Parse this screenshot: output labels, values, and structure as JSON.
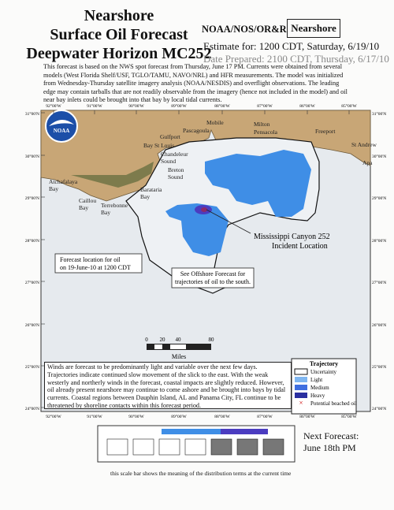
{
  "header": {
    "title_lines": [
      "Nearshore",
      "Surface Oil Forecast",
      "Deepwater Horizon MC252"
    ],
    "agency": "NOAA/NOS/OR&R",
    "badge": "Nearshore",
    "estimate": "Estimate for: 1200 CDT, Saturday, 6/19/10",
    "prepared": "Date Prepared: 2100 CDT, Thursday, 6/17/10"
  },
  "intro": "This forecast is based on the NWS spot forecast from Thursday, June 17 PM. Currents were obtained from several models (West Florida Shelf/USF, TGLO/TAMU, NAVO/NRL) and HFR measurements. The model was initialized from Wednesday-Thursday satellite imagery analysis (NOAA/NESDIS) and overflight observations. The leading edge may contain tarballs that are not readily observable from the imagery (hence not included in the model) and oil near bay inlets could be brought into that bay by local tidal currents.",
  "map": {
    "logo": "NOAA",
    "lat_labels": [
      "31°00'N",
      "30°00'N",
      "29°00'N",
      "28°00'N",
      "27°00'N",
      "26°00'N",
      "25°00'N",
      "24°00'N"
    ],
    "lon_labels": [
      "92°00'W",
      "91°00'W",
      "90°00'W",
      "89°00'W",
      "88°00'W",
      "87°00'W",
      "86°00'W",
      "85°00'W"
    ],
    "places": [
      {
        "lines": [
          "Mobile"
        ]
      },
      {
        "lines": [
          "Pascagoula"
        ]
      },
      {
        "lines": [
          "Gulfport"
        ]
      },
      {
        "lines": [
          "Bay St Louis"
        ]
      },
      {
        "lines": [
          "Milton"
        ]
      },
      {
        "lines": [
          "Pensacola"
        ]
      },
      {
        "lines": [
          "Freeport"
        ]
      },
      {
        "lines": [
          "St Andrew"
        ]
      },
      {
        "lines": [
          "Apa"
        ]
      },
      {
        "lines": [
          "Chandeleur",
          "Sound"
        ]
      },
      {
        "lines": [
          "Breton",
          "Sound"
        ]
      },
      {
        "lines": [
          "Barataria",
          "Bay"
        ]
      },
      {
        "lines": [
          "Atchafalaya",
          "Bay"
        ]
      },
      {
        "lines": [
          "Caillou",
          "Bay"
        ]
      },
      {
        "lines": [
          "Terrebonne",
          "Bay"
        ]
      }
    ],
    "incident": [
      "Mississippi Canyon 252",
      "Incident Location"
    ],
    "forecast_box": [
      "Forecast location for oil",
      "on 19-June-10 at 1200 CDT"
    ],
    "offshore_box": [
      "See Offshore Forecast for",
      "trajectories of oil to the south."
    ],
    "scale": {
      "ticks": [
        0,
        20,
        40,
        80
      ],
      "unit": "Miles"
    }
  },
  "wind_note": "Winds are forecast to be predominantly light and variable over the next few days. Trajectories indicate continued slow movement of the slick to the east. With the weak westerly and northerly winds in the forecast, coastal impacts are slightly reduced. However, oil already present nearshore may continue to come ashore and be brought into bays by tidal currents. Coastal regions between Dauphin Island, AL and Panama City, FL continue to be threatened by shoreline contacts within this forecast period.",
  "legend": {
    "title": "Trajectory",
    "items": [
      "Uncertainty",
      "Light",
      "Medium",
      "Heavy",
      "Potential beached oil"
    ]
  },
  "next_forecast": {
    "label": "Next Forecast:",
    "value": "June 18th PM"
  },
  "scale_caption": "this scale bar shows the meaning of the distribution terms at the current time"
}
